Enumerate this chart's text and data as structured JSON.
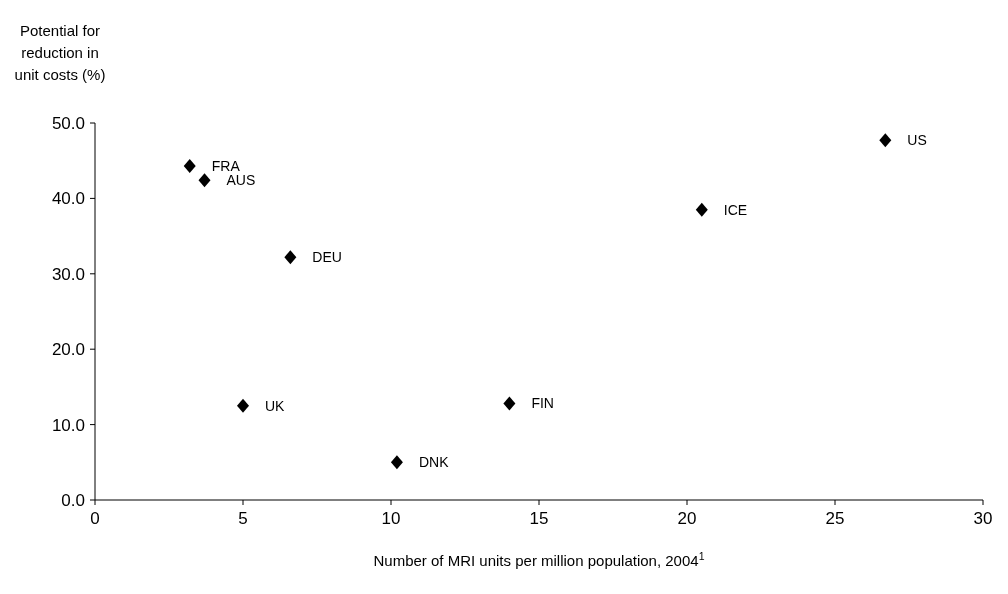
{
  "chart_data": {
    "type": "scatter",
    "xlabel": "Number of MRI units per million population, 2004$^{1}$",
    "ylabel": "Potential for reduction in unit costs (%)",
    "x": [
      3.2,
      3.7,
      6.6,
      5.0,
      10.2,
      14.0,
      20.5,
      26.7
    ],
    "series": [
      {
        "color": "#000000",
        "values": [
          44.3,
          42.4,
          32.2,
          12.5,
          5.0,
          12.8,
          38.5,
          47.7
        ]
      }
    ],
    "xlim": [
      0,
      30
    ],
    "xticks": [
      0,
      5,
      10,
      15,
      20,
      25,
      30
    ],
    "ylim": [
      0,
      50
    ],
    "yticks": [
      {
        "value": 0,
        "label": "0.0"
      },
      {
        "value": 10,
        "label": "10.0"
      },
      {
        "value": 20,
        "label": "20.0"
      },
      {
        "value": 30,
        "label": "30.0"
      },
      {
        "value": 40,
        "label": "40.0"
      },
      {
        "value": 50,
        "label": "50.0"
      }
    ],
    "marker": "diamond",
    "grid": false,
    "annotations": [
      {
        "text": "FRA",
        "x": 3.2,
        "y": 44.3
      },
      {
        "text": "AUS",
        "x": 3.7,
        "y": 42.4
      },
      {
        "text": "DEU",
        "x": 6.6,
        "y": 32.2
      },
      {
        "text": "UK",
        "x": 5.0,
        "y": 12.5
      },
      {
        "text": "DNK",
        "x": 10.2,
        "y": 5.0
      },
      {
        "text": "FIN",
        "x": 14.0,
        "y": 12.8
      },
      {
        "text": "ICE",
        "x": 20.5,
        "y": 38.5
      },
      {
        "text": "US",
        "x": 26.7,
        "y": 47.7
      }
    ]
  }
}
